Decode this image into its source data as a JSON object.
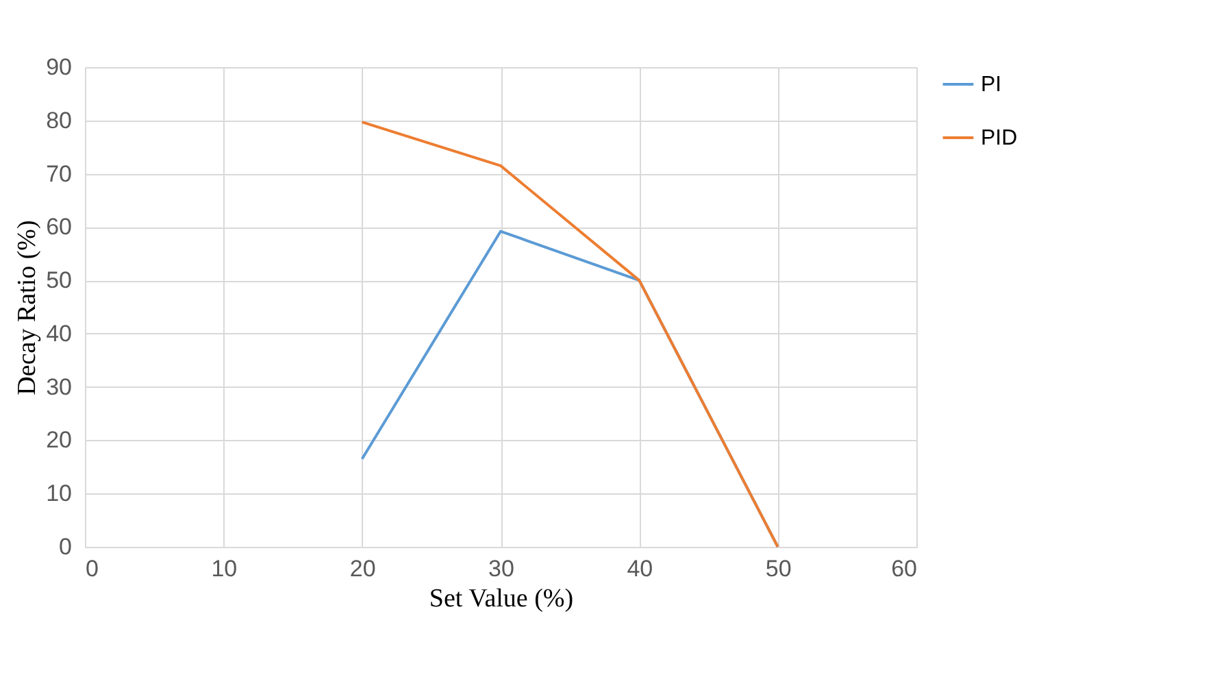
{
  "chart_data": {
    "type": "line",
    "xlabel": "Set Value (%)",
    "ylabel": "Decay Ratio (%)",
    "x": [
      20,
      30,
      40,
      50
    ],
    "series": [
      {
        "name": "PI",
        "color": "#5b9bd5",
        "values": [
          16.5,
          59.2,
          50,
          0
        ]
      },
      {
        "name": "PID",
        "color": "#ed7d31",
        "values": [
          79.7,
          71.5,
          50,
          0
        ]
      }
    ],
    "xlim": [
      0,
      60
    ],
    "xticks": [
      0,
      10,
      20,
      30,
      40,
      50,
      60
    ],
    "ylim": [
      0,
      90
    ],
    "yticks": [
      0,
      10,
      20,
      30,
      40,
      50,
      60,
      70,
      80,
      90
    ],
    "grid": true,
    "legend": "right",
    "marker": "none",
    "line_style": "solid"
  }
}
